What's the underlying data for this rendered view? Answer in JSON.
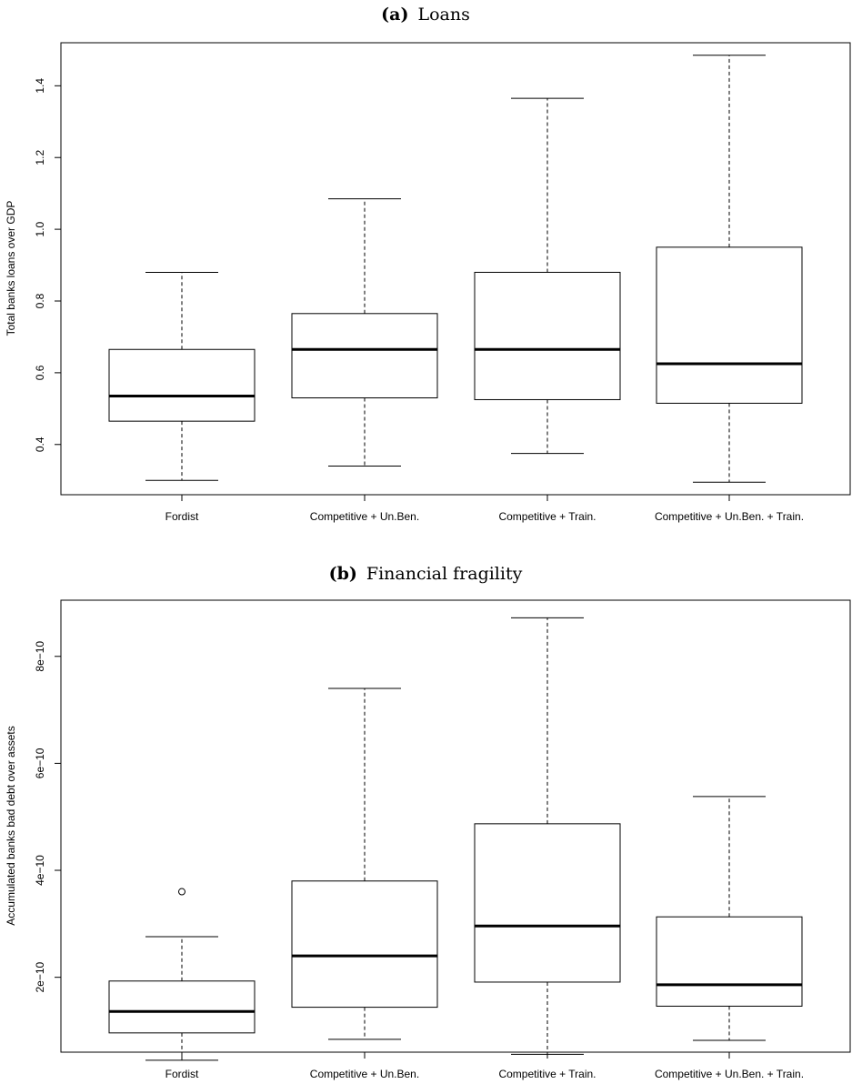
{
  "chart_data": [
    {
      "type": "boxplot",
      "panel_label": "(a)",
      "title": "Loans",
      "xlabel": "",
      "ylabel": "Total banks loans over GDP",
      "ylim": [
        0.26,
        1.52
      ],
      "yticks": [
        0.4,
        0.6,
        0.8,
        1.0,
        1.2,
        1.4
      ],
      "ytick_labels": [
        "0.4",
        "0.6",
        "0.8",
        "1.0",
        "1.2",
        "1.4"
      ],
      "categories": [
        "Fordist",
        "Competitive + Un.Ben.",
        "Competitive + Train.",
        "Competitive + Un.Ben. + Train."
      ],
      "boxes": [
        {
          "min": 0.3,
          "q1": 0.465,
          "median": 0.535,
          "q3": 0.665,
          "max": 0.88,
          "outliers": []
        },
        {
          "min": 0.34,
          "q1": 0.53,
          "median": 0.665,
          "q3": 0.765,
          "max": 1.085,
          "outliers": []
        },
        {
          "min": 0.375,
          "q1": 0.525,
          "median": 0.665,
          "q3": 0.88,
          "max": 1.365,
          "outliers": []
        },
        {
          "min": 0.295,
          "q1": 0.515,
          "median": 0.625,
          "q3": 0.95,
          "max": 1.485,
          "outliers": []
        }
      ]
    },
    {
      "type": "boxplot",
      "panel_label": "(b)",
      "title": "Financial fragility",
      "xlabel": "",
      "ylabel": "Accumulated banks bad debt over assets",
      "ylim": [
        6e-11,
        9.05e-10
      ],
      "yticks": [
        2e-10,
        4e-10,
        6e-10,
        8e-10
      ],
      "ytick_labels": [
        "2e−10",
        "4e−10",
        "6e−10",
        "8e−10"
      ],
      "categories": [
        "Fordist",
        "Competitive + Un.Ben.",
        "Competitive + Train.",
        "Competitive + Un.Ben. + Train."
      ],
      "boxes": [
        {
          "min": 4.5e-11,
          "q1": 9.6e-11,
          "median": 1.36e-10,
          "q3": 1.93e-10,
          "max": 2.76e-10,
          "outliers": [
            3.6e-10
          ]
        },
        {
          "min": 8.4e-11,
          "q1": 1.44e-10,
          "median": 2.4e-10,
          "q3": 3.8e-10,
          "max": 7.4e-10,
          "outliers": []
        },
        {
          "min": 5.6e-11,
          "q1": 1.91e-10,
          "median": 2.96e-10,
          "q3": 4.87e-10,
          "max": 8.72e-10,
          "outliers": []
        },
        {
          "min": 8.2e-11,
          "q1": 1.46e-10,
          "median": 1.86e-10,
          "q3": 3.13e-10,
          "max": 5.38e-10,
          "outliers": []
        }
      ]
    }
  ]
}
